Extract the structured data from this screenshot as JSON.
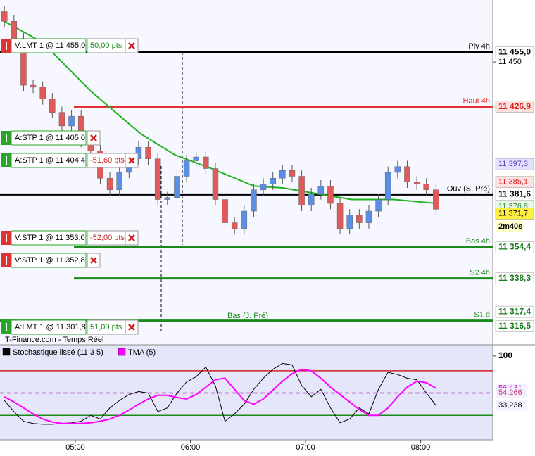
{
  "chart_data": {
    "type": "candlestick",
    "source": "IT-Finance.com - Temps Réel",
    "x": [
      23,
      28,
      33,
      38,
      43,
      48,
      53,
      58,
      63,
      68,
      73,
      78,
      83,
      88,
      93,
      98,
      103,
      108,
      113,
      118,
      123,
      128,
      133,
      138,
      143,
      148,
      153,
      158,
      163,
      168,
      173,
      178,
      183,
      188,
      193,
      198,
      203,
      208,
      213,
      218,
      223,
      228,
      233,
      238,
      243,
      248
    ],
    "open": [
      11476,
      11471,
      11462,
      11438,
      11437,
      11431,
      11424,
      11417,
      11422,
      11409,
      11404,
      11390,
      11384,
      11393,
      11400,
      11406,
      11400,
      11379,
      11380,
      11391,
      11399,
      11401,
      11395,
      11379,
      11367,
      11364,
      11373,
      11384,
      11387,
      11390,
      11394,
      11391,
      11376,
      11382,
      11386,
      11377,
      11364,
      11371,
      11367,
      11373,
      11379,
      11393,
      11396,
      11388,
      11387,
      11384
    ],
    "high": [
      11479,
      11474,
      11465,
      11441,
      11440,
      11434,
      11427,
      11425,
      11425,
      11412,
      11407,
      11393,
      11396,
      11403,
      11409,
      11409,
      11403,
      11383,
      11394,
      11402,
      11404,
      11404,
      11398,
      11382,
      11370,
      11376,
      11387,
      11390,
      11393,
      11397,
      11397,
      11394,
      11385,
      11389,
      11389,
      11380,
      11374,
      11374,
      11376,
      11382,
      11396,
      11399,
      11399,
      11391,
      11390,
      11387
    ],
    "low": [
      11468,
      11459,
      11435,
      11434,
      11428,
      11421,
      11414,
      11414,
      11406,
      11401,
      11387,
      11381,
      11381,
      11390,
      11397,
      11397,
      11376,
      11376,
      11377,
      11388,
      11396,
      11392,
      11376,
      11364,
      11361,
      11361,
      11370,
      11381,
      11384,
      11387,
      11388,
      11373,
      11373,
      11379,
      11374,
      11361,
      11361,
      11364,
      11364,
      11370,
      11376,
      11390,
      11385,
      11384,
      11381,
      11371
    ],
    "close": [
      11471,
      11462,
      11438,
      11437,
      11431,
      11424,
      11417,
      11422,
      11409,
      11404,
      11390,
      11384,
      11393,
      11400,
      11406,
      11400,
      11379,
      11380,
      11391,
      11399,
      11401,
      11395,
      11379,
      11367,
      11364,
      11373,
      11384,
      11387,
      11390,
      11394,
      11391,
      11376,
      11382,
      11386,
      11377,
      11364,
      11371,
      11367,
      11373,
      11379,
      11393,
      11396,
      11388,
      11387,
      11384,
      11374
    ],
    "up_color": "#5b8ee6",
    "down_color": "#e05a5a",
    "moving_average": {
      "color": "#1fb31f",
      "x": [
        23,
        43,
        68,
        94,
        112,
        131,
        153,
        168,
        186,
        204,
        226,
        248
      ],
      "values": [
        11471,
        11460,
        11435,
        11413,
        11402,
        11395,
        11386,
        11385,
        11382,
        11379,
        11379,
        11377
      ]
    },
    "xlim": [
      20.73,
      277.6
    ],
    "xticks": [
      {
        "value": 60,
        "label": "05:00"
      },
      {
        "value": 120,
        "label": "06:00"
      },
      {
        "value": 180,
        "label": "07:00"
      },
      {
        "value": 240,
        "label": "08:00"
      }
    ],
    "ylim": [
      11304,
      11482
    ],
    "levels": [
      {
        "name": "Piv 4h",
        "value": 11455.0,
        "color": "#000000"
      },
      {
        "name": "Haut 4h",
        "value": 11426.9,
        "color": "#e83030"
      },
      {
        "name": "Ouv (S. Pré)",
        "value": 11381.6,
        "color": "#000000"
      },
      {
        "name": "Bas 4h",
        "value": 11354.4,
        "color": "#1a8a1a"
      },
      {
        "name": "S2 4h",
        "value": 11338.3,
        "color": "#1a8a1a"
      },
      {
        "name": "S1 d",
        "value": 11316.5,
        "color": "#1a8a1a"
      }
    ],
    "annotation": "Bas (J. Pré)",
    "orders": [
      {
        "text": "V:LMT 1 @ 11 455,0",
        "pts": "50,00 pts",
        "side": "sell"
      },
      {
        "text": "A:STP 1 @ 11 405,0",
        "side": "buy"
      },
      {
        "text": "A:STP 1 @ 11 404,4",
        "pts": "-51,60 pts",
        "side": "buy"
      },
      {
        "text": "V:STP 1 @ 11 353,0",
        "pts": "-52,00 pts",
        "side": "sell"
      },
      {
        "text": "V:STP 1 @ 11 352,8",
        "side": "sell"
      },
      {
        "text": "A:LMT 1 @ 11 301,8",
        "pts": "51,00 pts",
        "side": "buy"
      }
    ],
    "price_labels": [
      {
        "value": 11455.0,
        "label": "11 455,0",
        "bg": "#ffffff",
        "fg": "#000000",
        "bold": true
      },
      {
        "value": 11450,
        "label": "11 450",
        "bg": "none",
        "fg": "#000000",
        "bold": false
      },
      {
        "value": 11426.9,
        "label": "11 426,9",
        "bg": "#fde0e0",
        "fg": "#e02020",
        "bold": true
      },
      {
        "value": 11397.3,
        "label": "11 397,3",
        "bg": "#e4e0ff",
        "fg": "#6040c0",
        "bold": false
      },
      {
        "value": 11385.1,
        "label": "11 385,1",
        "bg": "#fde0e0",
        "fg": "#e02020",
        "bold": false
      },
      {
        "value": 11381.6,
        "label": "11 381,6",
        "bg": "#ffffff",
        "fg": "#000000",
        "bold": true
      },
      {
        "value": 11376.8,
        "label": "11 376,8",
        "bg": "#e8f6e8",
        "fg": "#409040",
        "bold": false
      },
      {
        "value": 11371.7,
        "label": "11 371,7",
        "bg": "#ffee44",
        "fg": "#000000",
        "bold": false
      },
      {
        "value": 11354.4,
        "label": "11 354,4",
        "bg": "#ffffff",
        "fg": "#1a7a1a",
        "bold": true
      },
      {
        "value": 11338.3,
        "label": "11 338,3",
        "bg": "#ffffff",
        "fg": "#1a7a1a",
        "bold": true
      },
      {
        "value": 11317.4,
        "label": "11 317,4",
        "bg": "#ffffff",
        "fg": "#1a7a1a",
        "bold": true
      },
      {
        "value": 11316.5,
        "label": "11 316,5",
        "bg": "#ffffff",
        "fg": "#1a7a1a",
        "bold": true
      }
    ],
    "countdown": "2m40s",
    "indicator": {
      "type": "line",
      "ylim": [
        -13,
        115
      ],
      "yticks": [
        100
      ],
      "levels": [
        {
          "value": 80,
          "color": "#d02020"
        },
        {
          "value": 50,
          "color": "#a020a0"
        },
        {
          "value": 20,
          "color": "#1a8a1a"
        }
      ],
      "series": [
        {
          "name": "Stochastique lissé (11 3 5)",
          "color": "#000000",
          "values": [
            40,
            25,
            12,
            9,
            8,
            8,
            9,
            10,
            12,
            20,
            15,
            30,
            40,
            48,
            52,
            50,
            25,
            30,
            50,
            65,
            72,
            85,
            60,
            12,
            22,
            35,
            55,
            70,
            82,
            90,
            88,
            60,
            45,
            55,
            30,
            10,
            15,
            30,
            22,
            55,
            78,
            75,
            70,
            68,
            50,
            33.238
          ]
        },
        {
          "name": "TMA (5)",
          "color": "#ff00ff",
          "values": [
            45,
            38,
            30,
            22,
            15,
            11,
            9,
            9,
            9,
            10,
            12,
            15,
            20,
            27,
            35,
            42,
            47,
            47,
            44,
            42,
            48,
            58,
            68,
            70,
            55,
            40,
            35,
            42,
            54,
            66,
            76,
            82,
            80,
            70,
            58,
            48,
            38,
            28,
            20,
            20,
            30,
            45,
            58,
            66,
            64,
            56.431
          ]
        }
      ],
      "price_labels": [
        {
          "value": 56.431,
          "label": "56,431",
          "fg": "#c020c0"
        },
        {
          "value": 54.266,
          "label": "54,266",
          "fg": "#c04080"
        },
        {
          "value": 33.238,
          "label": "33,238",
          "fg": "#000000"
        }
      ]
    }
  }
}
